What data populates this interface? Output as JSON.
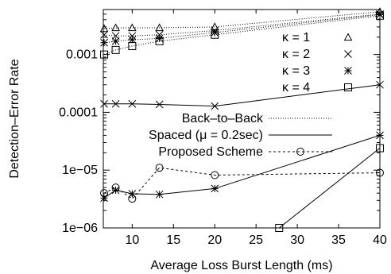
{
  "chart_data": {
    "type": "line",
    "xlabel": "Average Loss Burst Length (ms)",
    "ylabel": "Detection–Error Rate",
    "xlim": [
      6.5,
      40
    ],
    "ylim": [
      1e-06,
      0.006
    ],
    "y_scale": "log",
    "grid": false,
    "x_ticks": [
      10,
      15,
      20,
      25,
      30,
      35,
      40
    ],
    "x_tick_labels": [
      "10",
      "15",
      "20",
      "25",
      "30",
      "35",
      "40"
    ],
    "y_ticks": [
      1e-06,
      1e-05,
      0.0001,
      0.001
    ],
    "y_tick_labels": [
      "1e−06",
      "1e−05",
      "0.0001",
      "0.001"
    ],
    "legend_kappa": [
      {
        "label": "κ = 1",
        "marker": "triangle"
      },
      {
        "label": "κ = 2",
        "marker": "x"
      },
      {
        "label": "κ = 3",
        "marker": "star"
      },
      {
        "label": "κ = 4",
        "marker": "square"
      }
    ],
    "legend_scheme": [
      {
        "label": "Back–to–Back",
        "style": "dotted"
      },
      {
        "label": "Spaced (μ = 0.2sec)",
        "style": "solid"
      },
      {
        "label": "Proposed Scheme",
        "style": "dashed-circle"
      }
    ],
    "series": [
      {
        "scheme": "Back-to-Back",
        "kappa": 1,
        "line": "dotted",
        "marker": "triangle",
        "x": [
          6.6,
          8,
          10,
          13.3,
          20,
          40
        ],
        "y": [
          0.0028,
          0.0029,
          0.0029,
          0.0029,
          0.003,
          0.0055
        ]
      },
      {
        "scheme": "Back-to-Back",
        "kappa": 2,
        "line": "dotted",
        "marker": "x",
        "x": [
          6.6,
          8,
          10,
          13.3,
          20,
          40
        ],
        "y": [
          0.0022,
          0.0021,
          0.0021,
          0.0022,
          0.0026,
          0.005
        ]
      },
      {
        "scheme": "Back-to-Back",
        "kappa": 3,
        "line": "dotted",
        "marker": "star",
        "x": [
          6.6,
          8,
          10,
          13.3,
          20,
          40
        ],
        "y": [
          0.0016,
          0.0017,
          0.0018,
          0.0019,
          0.0024,
          0.0049
        ]
      },
      {
        "scheme": "Back-to-Back",
        "kappa": 4,
        "line": "dotted",
        "marker": "square",
        "x": [
          6.6,
          8,
          10,
          13.3,
          20,
          40
        ],
        "y": [
          0.001,
          0.0012,
          0.0014,
          0.0017,
          0.0022,
          0.0047
        ]
      },
      {
        "scheme": "Spaced",
        "kappa": 2,
        "line": "solid",
        "marker": "x",
        "x": [
          6.6,
          8,
          10,
          13.3,
          20,
          40
        ],
        "y": [
          0.00014,
          0.00014,
          0.00014,
          0.000137,
          0.000128,
          0.0003
        ]
      },
      {
        "scheme": "Spaced",
        "kappa": 3,
        "line": "solid",
        "marker": "star",
        "x": [
          6.6,
          8,
          10,
          13.3,
          20,
          40
        ],
        "y": [
          3.3e-06,
          4.5e-06,
          3.9e-06,
          3.8e-06,
          4.8e-06,
          4e-05
        ]
      },
      {
        "scheme": "Spaced",
        "kappa": 4,
        "line": "solid",
        "marker": "square",
        "x": [
          27.8,
          40
        ],
        "y": [
          1e-06,
          2.4e-05
        ]
      },
      {
        "scheme": "Proposed Scheme",
        "kappa": 2,
        "line": "dashed",
        "marker": "circle",
        "x": [
          6.6,
          8,
          10,
          13.3,
          20,
          40
        ],
        "y": [
          4e-06,
          5e-06,
          3.2e-06,
          1.1e-05,
          8.2e-06,
          9e-06
        ]
      }
    ]
  }
}
